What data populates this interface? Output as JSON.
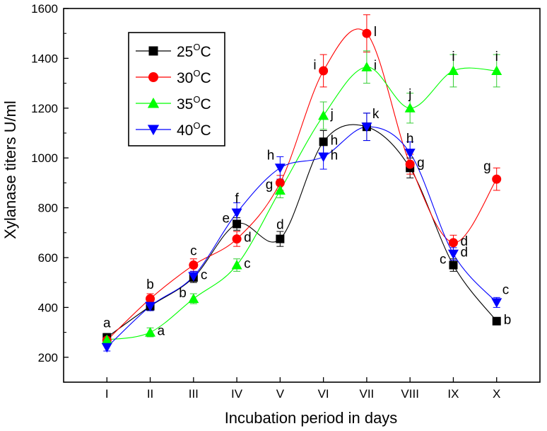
{
  "chart_data": {
    "type": "line",
    "title": "",
    "xlabel": "Incubation period in days",
    "ylabel": "Xylanase titers U/ml",
    "categories": [
      "I",
      "II",
      "III",
      "IV",
      "V",
      "VI",
      "VII",
      "VIII",
      "IX",
      "X"
    ],
    "ylim": [
      100,
      1600
    ],
    "yticks": [
      200,
      400,
      600,
      800,
      1000,
      1200,
      1400,
      1600
    ],
    "grid": false,
    "legend_position": "top-left",
    "series": [
      {
        "name": "25°C",
        "label_main": "25",
        "label_sup": "O",
        "label_unit": "C",
        "color": "#000000",
        "marker": "square",
        "values": [
          280,
          405,
          520,
          735,
          675,
          1065,
          1125,
          960,
          570,
          345
        ],
        "errors": [
          15,
          18,
          20,
          25,
          30,
          45,
          55,
          40,
          25,
          15
        ],
        "letters": [
          "a",
          "",
          "",
          "e",
          "d",
          "h",
          "",
          "",
          "c",
          "b"
        ],
        "letter_pos": [
          "above",
          "",
          "",
          "left",
          "above",
          "right",
          "",
          "",
          "left",
          "right"
        ]
      },
      {
        "name": "30°C",
        "label_main": "30",
        "label_sup": "O",
        "label_unit": "C",
        "color": "#ff0000",
        "marker": "circle",
        "values": [
          268,
          435,
          570,
          675,
          900,
          1350,
          1500,
          975,
          660,
          915
        ],
        "errors": [
          15,
          20,
          25,
          30,
          30,
          65,
          75,
          40,
          30,
          45
        ],
        "letters": [
          "",
          "b",
          "c",
          "d",
          "",
          "i",
          "l",
          "g",
          "d",
          "g"
        ],
        "letter_pos": [
          "",
          "above",
          "above",
          "right",
          "",
          "left",
          "right",
          "right",
          "right",
          "above-left"
        ]
      },
      {
        "name": "35°C",
        "label_main": "35",
        "label_sup": "O",
        "label_unit": "C",
        "color": "#00ff00",
        "marker": "triangle-up",
        "values": [
          270,
          300,
          435,
          570,
          870,
          1170,
          1365,
          1200,
          1350,
          1350
        ],
        "errors": [
          15,
          18,
          20,
          25,
          30,
          55,
          65,
          60,
          65,
          65
        ],
        "letters": [
          "",
          "a",
          "b",
          "c",
          "g",
          "j",
          "i",
          "j",
          "i",
          "i"
        ],
        "letter_pos": [
          "",
          "right",
          "left",
          "right",
          "left",
          "right",
          "right",
          "above",
          "above",
          "above"
        ]
      },
      {
        "name": "40°C",
        "label_main": "40",
        "label_sup": "O",
        "label_unit": "C",
        "color": "#0000ff",
        "marker": "triangle-down",
        "values": [
          240,
          405,
          525,
          780,
          960,
          1005,
          1125,
          1020,
          615,
          420
        ],
        "errors": [
          15,
          18,
          20,
          40,
          45,
          50,
          55,
          45,
          25,
          20
        ],
        "letters": [
          "",
          "",
          "c",
          "f",
          "h",
          "h",
          "k",
          "h",
          "d",
          "c"
        ],
        "letter_pos": [
          "",
          "",
          "right",
          "above",
          "above-left",
          "right",
          "above-right",
          "above",
          "right",
          "above-right"
        ]
      }
    ]
  }
}
